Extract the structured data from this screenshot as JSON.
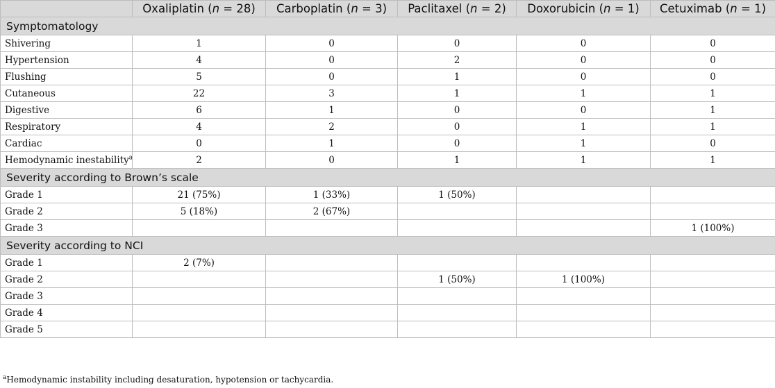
{
  "header": {
    "corner": "",
    "columns": [
      {
        "drug": "Oxaliplatin",
        "open": " (",
        "n": "n",
        "rest": " = 28)"
      },
      {
        "drug": "Carboplatin",
        "open": " (",
        "n": "n",
        "rest": " = 3)"
      },
      {
        "drug": "Paclitaxel",
        "open": " (",
        "n": "n",
        "rest": " = 2)"
      },
      {
        "drug": "Doxorubicin",
        "open": " (",
        "n": "n",
        "rest": " = 1)"
      },
      {
        "drug": "Cetuximab",
        "open": " (",
        "n": "n",
        "rest": " = 1)"
      }
    ]
  },
  "sections": [
    {
      "title": "Symptomatology",
      "rows": [
        {
          "label": "Shivering",
          "sup": "",
          "values": [
            "1",
            "0",
            "0",
            "0",
            "0"
          ]
        },
        {
          "label": "Hypertension",
          "sup": "",
          "values": [
            "4",
            "0",
            "2",
            "0",
            "0"
          ]
        },
        {
          "label": "Flushing",
          "sup": "",
          "values": [
            "5",
            "0",
            "1",
            "0",
            "0"
          ]
        },
        {
          "label": "Cutaneous",
          "sup": "",
          "values": [
            "22",
            "3",
            "1",
            "1",
            "1"
          ]
        },
        {
          "label": "Digestive",
          "sup": "",
          "values": [
            "6",
            "1",
            "0",
            "0",
            "1"
          ]
        },
        {
          "label": "Respiratory",
          "sup": "",
          "values": [
            "4",
            "2",
            "0",
            "1",
            "1"
          ]
        },
        {
          "label": "Cardiac",
          "sup": "",
          "values": [
            "0",
            "1",
            "0",
            "1",
            "0"
          ]
        },
        {
          "label": "Hemodynamic inestability",
          "sup": "a",
          "values": [
            "2",
            "0",
            "1",
            "1",
            "1"
          ]
        }
      ]
    },
    {
      "title": "Severity according to Brown’s scale",
      "rows": [
        {
          "label": "Grade 1",
          "sup": "",
          "values": [
            "21 (75%)",
            "1 (33%)",
            "1 (50%)",
            "",
            ""
          ]
        },
        {
          "label": "Grade 2",
          "sup": "",
          "values": [
            "5 (18%)",
            "2 (67%)",
            "",
            "",
            ""
          ]
        },
        {
          "label": "Grade 3",
          "sup": "",
          "values": [
            "",
            "",
            "",
            "",
            "1 (100%)"
          ]
        }
      ]
    },
    {
      "title": "Severity according to NCI",
      "rows": [
        {
          "label": "Grade 1",
          "sup": "",
          "values": [
            "2 (7%)",
            "",
            "",
            "",
            ""
          ]
        },
        {
          "label": "Grade 2",
          "sup": "",
          "values": [
            "",
            "",
            "1 (50%)",
            "1 (100%)",
            ""
          ]
        },
        {
          "label": "Grade 3",
          "sup": "",
          "values": [
            "",
            "",
            "",
            "",
            ""
          ]
        },
        {
          "label": "Grade 4",
          "sup": "",
          "values": [
            "",
            "",
            "",
            "",
            ""
          ]
        },
        {
          "label": "Grade 5",
          "sup": "",
          "values": [
            "",
            "",
            "",
            "",
            ""
          ]
        }
      ]
    }
  ],
  "footnote": {
    "mark": "a",
    "text": "Hemodynamic instability including desaturation, hypotension or tachycardia."
  }
}
